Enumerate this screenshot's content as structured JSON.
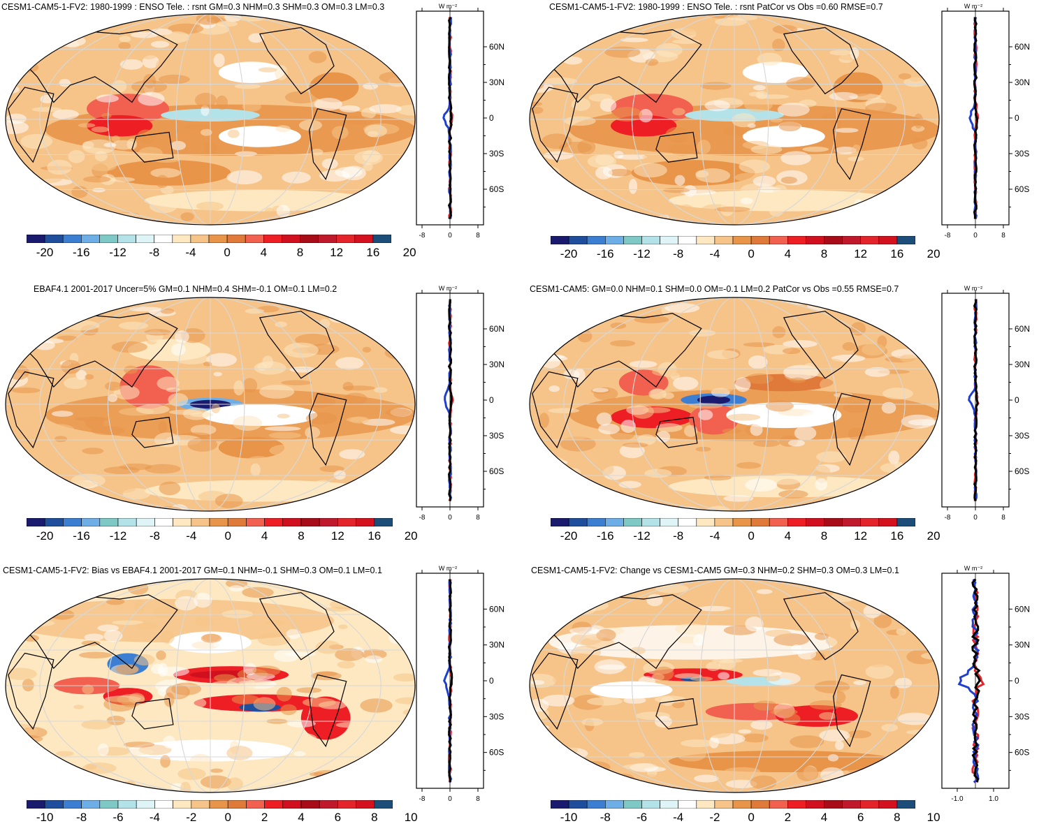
{
  "palette": [
    "#1a1a6e",
    "#1f4f9c",
    "#3c7fd2",
    "#6eaee6",
    "#7ec9c6",
    "#b3e2e8",
    "#dff4f6",
    "#ffffff",
    "#fde8c2",
    "#f6c489",
    "#e8954a",
    "#e07a3a",
    "#f26050",
    "#ee1e25",
    "#d0101e",
    "#a80c18",
    "#c0192b",
    "#e3242b",
    "#d4111f",
    "#1d4e7a"
  ],
  "panels": [
    {
      "id": "p1",
      "title": "CESM1-CAM5-1-FV2: 1980-1999 : ENSO Tele. : rsnt GM=0.3 NHM=0.3 SHM=0.3 OM=0.3 LM=0.3",
      "units": "W m⁻²",
      "lat_labels": [
        "60N",
        "30N",
        "0",
        "30S",
        "60S"
      ],
      "x_ticks": [
        "-8",
        "0",
        "8"
      ],
      "colorbar_labels": [
        "-20",
        "-16",
        "-12",
        "-8",
        "-4",
        "0",
        "4",
        "8",
        "12",
        "16",
        "20"
      ],
      "pattern": "model"
    },
    {
      "id": "p2",
      "title": "CESM1-CAM5-1-FV2: 1980-1999 : ENSO Tele. : rsnt PatCor vs Obs =0.60 RMSE=0.7",
      "units": "W m⁻²",
      "lat_labels": [
        "60N",
        "30N",
        "0",
        "30S",
        "60S"
      ],
      "x_ticks": [
        "-8",
        "0",
        "8"
      ],
      "colorbar_labels": [
        "-20",
        "-16",
        "-12",
        "-8",
        "-4",
        "0",
        "4",
        "8",
        "12",
        "16",
        "20"
      ],
      "pattern": "model"
    },
    {
      "id": "p3",
      "title": "EBAF4.1 2001-2017 Uncer=5% GM=0.1 NHM=0.4 SHM=-0.1 OM=0.1 LM=0.2",
      "units": "W m⁻²",
      "lat_labels": [
        "60N",
        "30N",
        "0",
        "30S",
        "60S"
      ],
      "x_ticks": [
        "-8",
        "0",
        "8"
      ],
      "colorbar_labels": [
        "-20",
        "-16",
        "-12",
        "-8",
        "-4",
        "0",
        "4",
        "8",
        "12",
        "16",
        "20"
      ],
      "pattern": "obs"
    },
    {
      "id": "p4",
      "title": "CESM1-CAM5: GM=0.0 NHM=0.1 SHM=0.0 OM=-0.1 LM=0.2 PatCor vs Obs =0.55 RMSE=0.7",
      "units": "W m⁻²",
      "lat_labels": [
        "60N",
        "30N",
        "0",
        "30S",
        "60S"
      ],
      "x_ticks": [
        "-8",
        "0",
        "8"
      ],
      "colorbar_labels": [
        "-20",
        "-16",
        "-12",
        "-8",
        "-4",
        "0",
        "4",
        "8",
        "12",
        "16",
        "20"
      ],
      "pattern": "cam5"
    },
    {
      "id": "p5",
      "title": "CESM1-CAM5-1-FV2: Bias vs EBAF4.1 2001-2017 GM=0.1 NHM=-0.1 SHM=0.3 OM=0.1 LM=0.1",
      "units": "W m⁻²",
      "lat_labels": [
        "60N",
        "30N",
        "0",
        "30S",
        "60S"
      ],
      "x_ticks": [
        "-8",
        "0",
        "8"
      ],
      "colorbar_labels": [
        "-10",
        "-8",
        "-6",
        "-4",
        "-2",
        "0",
        "2",
        "4",
        "6",
        "8",
        "10"
      ],
      "pattern": "bias"
    },
    {
      "id": "p6",
      "title": "CESM1-CAM5-1-FV2: Change vs CESM1-CAM5 GM=0.3 NHM=0.2 SHM=0.3 OM=0.3 LM=0.1",
      "units": "W m⁻²",
      "lat_labels": [
        "60N",
        "30N",
        "0",
        "30S",
        "60S"
      ],
      "x_ticks": [
        "-1.0",
        "1.0"
      ],
      "colorbar_labels": [
        "-10",
        "-8",
        "-6",
        "-4",
        "-2",
        "0",
        "2",
        "4",
        "6",
        "8",
        "10"
      ],
      "pattern": "change"
    }
  ],
  "chart_data": [
    {
      "type": "heatmap",
      "title": "CESM1-CAM5-1-FV2: 1980-1999 : ENSO Tele. : rsnt GM=0.3 NHM=0.3 SHM=0.3 OM=0.3 LM=0.3",
      "colorbar_range": [
        -20,
        20
      ],
      "zonal_mean_profile": {
        "xlim": [
          -10,
          10
        ],
        "lat": [
          -80,
          -60,
          -45,
          -30,
          -15,
          -5,
          0,
          5,
          10,
          20,
          30,
          45,
          60,
          75
        ],
        "ocean": [
          0,
          1,
          2,
          1,
          1,
          0,
          1,
          0,
          1,
          0,
          1,
          -1,
          0,
          0
        ],
        "land": [
          0,
          0,
          0,
          0,
          0,
          -1,
          -3,
          1,
          0,
          0,
          0,
          0,
          0,
          0
        ],
        "total": [
          0,
          0,
          0,
          0,
          0,
          0,
          0,
          0,
          1,
          0,
          0,
          0,
          0,
          0
        ]
      }
    },
    {
      "type": "heatmap",
      "title": "CESM1-CAM5-1-FV2: 1980-1999 : ENSO Tele. : rsnt PatCor vs Obs =0.60 RMSE=0.7",
      "colorbar_range": [
        -20,
        20
      ]
    },
    {
      "type": "heatmap",
      "title": "EBAF4.1 2001-2017 Uncer=5% GM=0.1 NHM=0.4 SHM=-0.1 OM=0.1 LM=0.2",
      "colorbar_range": [
        -20,
        20
      ]
    },
    {
      "type": "heatmap",
      "title": "CESM1-CAM5: GM=0.0 NHM=0.1 SHM=0.0 OM=-0.1 LM=0.2 PatCor vs Obs =0.55 RMSE=0.7",
      "colorbar_range": [
        -20,
        20
      ]
    },
    {
      "type": "heatmap",
      "title": "CESM1-CAM5-1-FV2: Bias vs EBAF4.1 2001-2017 GM=0.1 NHM=-0.1 SHM=0.3 OM=0.1 LM=0.1",
      "colorbar_range": [
        -10,
        10
      ]
    },
    {
      "type": "heatmap",
      "title": "CESM1-CAM5-1-FV2: Change vs CESM1-CAM5 GM=0.3 NHM=0.2 SHM=0.3 OM=0.3 LM=0.1",
      "colorbar_range": [
        -10,
        10
      ]
    }
  ]
}
